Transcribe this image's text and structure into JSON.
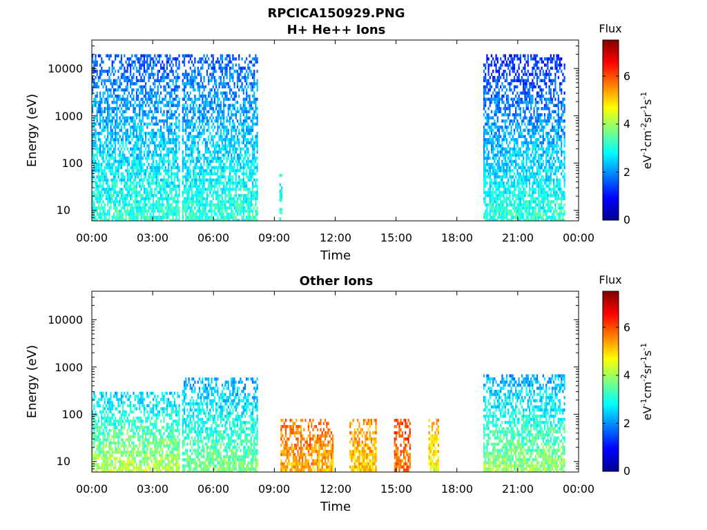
{
  "chart_data": [
    {
      "type": "heatmap",
      "title": "RPCICA150929.PNG",
      "subtitle": "H+ He++ Ions",
      "xlabel": "Time",
      "ylabel": "Energy (eV)",
      "x_ticks": [
        "00:00",
        "03:00",
        "06:00",
        "09:00",
        "12:00",
        "15:00",
        "18:00",
        "21:00",
        "00:00"
      ],
      "y_ticks": [
        "10",
        "100",
        "1000",
        "10000"
      ],
      "y_scale": "log",
      "ylim": [
        6,
        40000
      ],
      "colorbar": {
        "title": "Flux",
        "label": "eV-1cm-2sr-1s-1",
        "label_parts": [
          "eV",
          "-1",
          "cm",
          "-2",
          "sr",
          "-1",
          "s",
          "-1"
        ],
        "ticks": [
          "0",
          "2",
          "4",
          "6"
        ],
        "range": [
          0,
          7.5
        ]
      },
      "data_blocks": [
        {
          "t_start": 0.0,
          "t_end": 4.3,
          "e_min": 6,
          "e_max": 20000,
          "flux_low": 3.2,
          "flux_high": 1.6
        },
        {
          "t_start": 4.45,
          "t_end": 8.15,
          "e_min": 6,
          "e_max": 20000,
          "flux_low": 3.2,
          "flux_high": 1.6
        },
        {
          "t_start": 9.25,
          "t_end": 9.35,
          "e_min": 6,
          "e_max": 80,
          "flux_low": 3.2,
          "flux_high": 3.0
        },
        {
          "t_start": 19.3,
          "t_end": 23.3,
          "e_min": 6,
          "e_max": 20000,
          "flux_low": 3.2,
          "flux_high": 1.2
        }
      ]
    },
    {
      "type": "heatmap",
      "title": "Other Ions",
      "xlabel": "Time",
      "ylabel": "Energy (eV)",
      "x_ticks": [
        "00:00",
        "03:00",
        "06:00",
        "09:00",
        "12:00",
        "15:00",
        "18:00",
        "21:00",
        "00:00"
      ],
      "y_ticks": [
        "10",
        "100",
        "1000",
        "10000"
      ],
      "y_scale": "log",
      "ylim": [
        6,
        40000
      ],
      "colorbar": {
        "title": "Flux",
        "label": "eV-1cm-2sr-1s-1",
        "label_parts": [
          "eV",
          "-1",
          "cm",
          "-2",
          "sr",
          "-1",
          "s",
          "-1"
        ],
        "ticks": [
          "0",
          "2",
          "4",
          "6"
        ],
        "range": [
          0,
          7.5
        ]
      },
      "data_blocks": [
        {
          "t_start": 0.0,
          "t_end": 4.3,
          "e_min": 6,
          "e_max": 300,
          "flux_low": 4.3,
          "flux_high": 2.5
        },
        {
          "t_start": 4.45,
          "t_end": 8.15,
          "e_min": 6,
          "e_max": 600,
          "flux_low": 3.8,
          "flux_high": 2.2
        },
        {
          "t_start": 9.3,
          "t_end": 11.9,
          "e_min": 6,
          "e_max": 80,
          "flux_low": 5.2,
          "flux_high": 5.8
        },
        {
          "t_start": 12.7,
          "t_end": 14.0,
          "e_min": 6,
          "e_max": 80,
          "flux_low": 5.0,
          "flux_high": 5.6
        },
        {
          "t_start": 14.9,
          "t_end": 15.7,
          "e_min": 6,
          "e_max": 80,
          "flux_low": 5.6,
          "flux_high": 6.2
        },
        {
          "t_start": 16.6,
          "t_end": 17.1,
          "e_min": 6,
          "e_max": 80,
          "flux_low": 4.5,
          "flux_high": 5.4
        },
        {
          "t_start": 19.3,
          "t_end": 23.3,
          "e_min": 6,
          "e_max": 700,
          "flux_low": 4.0,
          "flux_high": 2.2
        }
      ]
    }
  ]
}
